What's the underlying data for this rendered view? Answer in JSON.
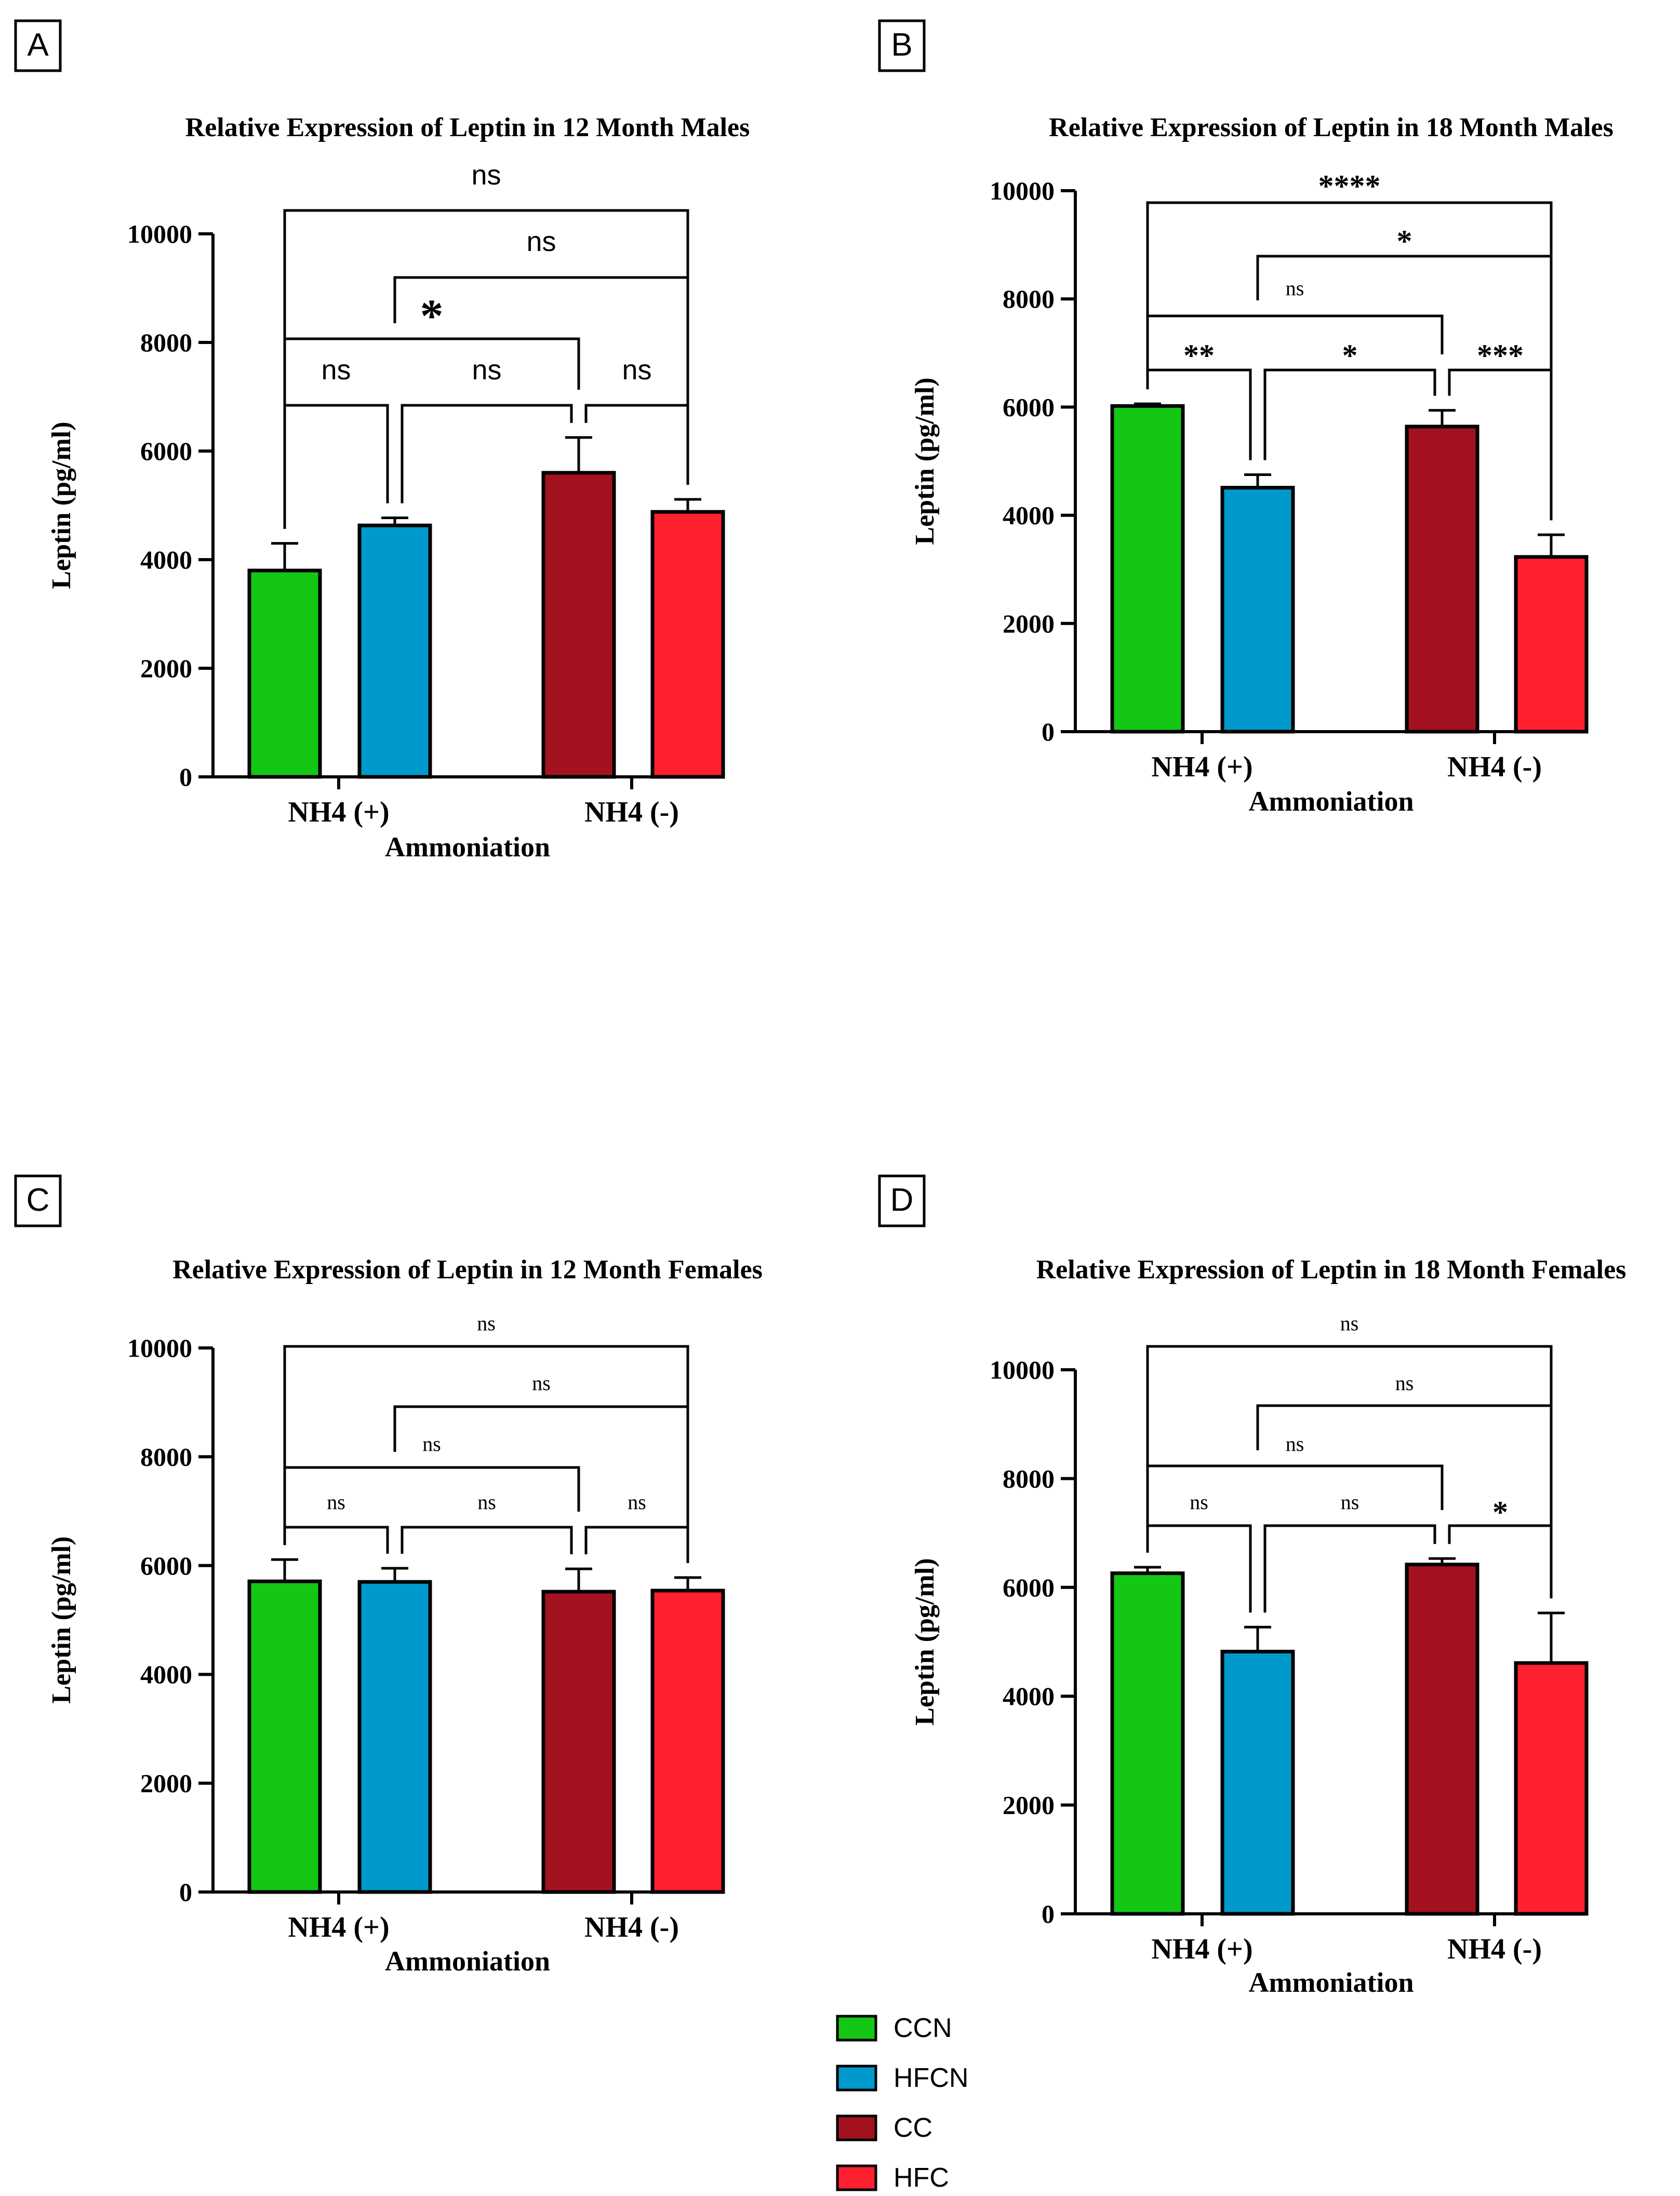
{
  "figure": {
    "legend": [
      {
        "name": "CCN",
        "color": "#14c714"
      },
      {
        "name": "HFCN",
        "color": "#0099cc"
      },
      {
        "name": "CC",
        "color": "#a3121e"
      },
      {
        "name": "HFC",
        "color": "#ff2030"
      }
    ]
  },
  "chart_data": [
    {
      "panel": "A",
      "type": "bar",
      "title": "Relative Expression of Leptin in 12 Month Males",
      "xlabel": "Ammoniation",
      "ylabel": "Leptin (pg/ml)",
      "categories": [
        "NH4 (+)",
        "NH4 (-)"
      ],
      "ylim": [
        0,
        10000
      ],
      "yticks": [
        0,
        2000,
        4000,
        6000,
        8000,
        10000
      ],
      "bars": [
        {
          "series": "CCN",
          "category": "NH4 (+)",
          "value": 3800,
          "error": 500
        },
        {
          "series": "HFCN",
          "category": "NH4 (+)",
          "value": 4630,
          "error": 140
        },
        {
          "series": "CC",
          "category": "NH4 (-)",
          "value": 5600,
          "error": 650
        },
        {
          "series": "HFC",
          "category": "NH4 (-)",
          "value": 4880,
          "error": 230
        }
      ],
      "comparisons": [
        {
          "from": 0,
          "to": 1,
          "label": "ns",
          "level": 1
        },
        {
          "from": 1,
          "to": 2,
          "label": "ns",
          "level": 1
        },
        {
          "from": 2,
          "to": 3,
          "label": "ns",
          "level": 1
        },
        {
          "from": 0,
          "to": 2,
          "label": "*",
          "level": 2
        },
        {
          "from": 1,
          "to": 3,
          "label": "ns",
          "level": 3
        },
        {
          "from": 0,
          "to": 3,
          "label": "ns",
          "level": 4
        }
      ]
    },
    {
      "panel": "B",
      "type": "bar",
      "title": "Relative Expression of Leptin in 18 Month Males",
      "xlabel": "Ammoniation",
      "ylabel": "Leptin (pg/ml)",
      "categories": [
        "NH4 (+)",
        "NH4 (-)"
      ],
      "ylim": [
        0,
        10000
      ],
      "yticks": [
        0,
        2000,
        4000,
        6000,
        8000,
        10000
      ],
      "bars": [
        {
          "series": "CCN",
          "category": "NH4 (+)",
          "value": 6020,
          "error": 40
        },
        {
          "series": "HFCN",
          "category": "NH4 (+)",
          "value": 4510,
          "error": 240
        },
        {
          "series": "CC",
          "category": "NH4 (-)",
          "value": 5640,
          "error": 300
        },
        {
          "series": "HFC",
          "category": "NH4 (-)",
          "value": 3230,
          "error": 410
        }
      ],
      "comparisons": [
        {
          "from": 0,
          "to": 1,
          "label": "**",
          "level": 1
        },
        {
          "from": 1,
          "to": 2,
          "label": "*",
          "level": 1
        },
        {
          "from": 2,
          "to": 3,
          "label": "***",
          "level": 1
        },
        {
          "from": 0,
          "to": 2,
          "label": "ns",
          "level": 2
        },
        {
          "from": 1,
          "to": 3,
          "label": "*",
          "level": 3
        },
        {
          "from": 0,
          "to": 3,
          "label": "****",
          "level": 4
        }
      ]
    },
    {
      "panel": "C",
      "type": "bar",
      "title": "Relative Expression of Leptin in 12 Month Females",
      "xlabel": "Ammoniation",
      "ylabel": "Leptin (pg/ml)",
      "categories": [
        "NH4 (+)",
        "NH4 (-)"
      ],
      "ylim": [
        0,
        10000
      ],
      "yticks": [
        0,
        2000,
        4000,
        6000,
        8000,
        10000
      ],
      "bars": [
        {
          "series": "CCN",
          "category": "NH4 (+)",
          "value": 5710,
          "error": 400
        },
        {
          "series": "HFCN",
          "category": "NH4 (+)",
          "value": 5700,
          "error": 250
        },
        {
          "series": "CC",
          "category": "NH4 (-)",
          "value": 5520,
          "error": 420
        },
        {
          "series": "HFC",
          "category": "NH4 (-)",
          "value": 5540,
          "error": 240
        }
      ],
      "comparisons": [
        {
          "from": 0,
          "to": 1,
          "label": "ns",
          "level": 1
        },
        {
          "from": 1,
          "to": 2,
          "label": "ns",
          "level": 1
        },
        {
          "from": 2,
          "to": 3,
          "label": "ns",
          "level": 1
        },
        {
          "from": 0,
          "to": 2,
          "label": "ns",
          "level": 2
        },
        {
          "from": 1,
          "to": 3,
          "label": "ns",
          "level": 3
        },
        {
          "from": 0,
          "to": 3,
          "label": "ns",
          "level": 4
        }
      ]
    },
    {
      "panel": "D",
      "type": "bar",
      "title": "Relative Expression of Leptin in 18 Month Females",
      "xlabel": "Ammoniation",
      "ylabel": "Leptin (pg/ml)",
      "categories": [
        "NH4 (+)",
        "NH4 (-)"
      ],
      "ylim": [
        0,
        10000
      ],
      "yticks": [
        0,
        2000,
        4000,
        6000,
        8000,
        10000
      ],
      "bars": [
        {
          "series": "CCN",
          "category": "NH4 (+)",
          "value": 6260,
          "error": 110
        },
        {
          "series": "HFCN",
          "category": "NH4 (+)",
          "value": 4820,
          "error": 450
        },
        {
          "series": "CC",
          "category": "NH4 (-)",
          "value": 6420,
          "error": 110
        },
        {
          "series": "HFC",
          "category": "NH4 (-)",
          "value": 4610,
          "error": 920
        }
      ],
      "comparisons": [
        {
          "from": 0,
          "to": 1,
          "label": "ns",
          "level": 1
        },
        {
          "from": 1,
          "to": 2,
          "label": "ns",
          "level": 1
        },
        {
          "from": 2,
          "to": 3,
          "label": "*",
          "level": 1
        },
        {
          "from": 0,
          "to": 2,
          "label": "ns",
          "level": 2
        },
        {
          "from": 1,
          "to": 3,
          "label": "ns",
          "level": 3
        },
        {
          "from": 0,
          "to": 3,
          "label": "ns",
          "level": 4
        }
      ]
    }
  ]
}
